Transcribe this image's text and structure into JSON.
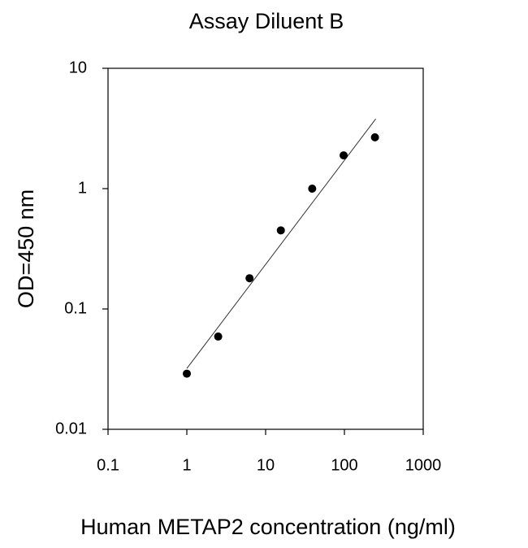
{
  "chart_data": {
    "type": "scatter",
    "title": "Assay Diluent B",
    "x_label": "Human METAP2 concentration (ng/ml)",
    "y_label": "OD=450 nm",
    "x": [
      1,
      2.5,
      6.25,
      15.6,
      39,
      97.7,
      244
    ],
    "values": [
      0.029,
      0.059,
      0.18,
      0.45,
      1.0,
      1.89,
      2.67
    ],
    "color": "#000000",
    "fit": {
      "x": [
        1,
        250
      ],
      "values": [
        0.032,
        3.8
      ],
      "color": "#333333"
    },
    "xscale": "log",
    "yscale": "log",
    "xlim": [
      0.1,
      1000
    ],
    "ylim": [
      0.01,
      10
    ],
    "xticks": [
      0.1,
      1,
      10,
      100,
      1000
    ],
    "yticks": [
      0.01,
      0.1,
      1,
      10
    ]
  }
}
